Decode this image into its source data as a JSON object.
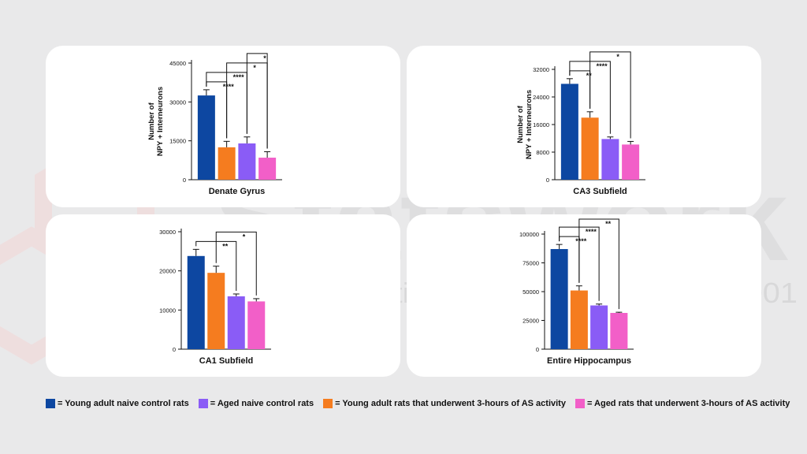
{
  "colors": {
    "young_naive": "#0d47a1",
    "aged_naive": "#8a5cf6",
    "young_as": "#f57c1f",
    "aged_as": "#f25fc8"
  },
  "watermark": {
    "brand": "Statswork",
    "tagline": "Pioneer Statistical Consulting since 2001"
  },
  "legend": [
    {
      "label": "= Young adult naive control rats",
      "color": "#0d47a1"
    },
    {
      "label": "= Aged naive control rats",
      "color": "#8a5cf6"
    },
    {
      "label": "= Young adult rats that underwent 3-hours of AS activity",
      "color": "#f57c1f"
    },
    {
      "label": "= Aged rats that underwent 3-hours of AS activity",
      "color": "#f25fc8"
    }
  ],
  "chart_data": [
    {
      "type": "bar",
      "title": "Denate Gyrus",
      "ylabel": [
        "Number of",
        "NPY + Interneurons"
      ],
      "ylim": [
        0,
        45000
      ],
      "yticks": [
        0,
        15000,
        30000,
        45000
      ],
      "categories": [
        "Young adult naive control rats",
        "Young adult rats that underwent 3-hours of AS activity",
        "Aged naive control rats",
        "Aged rats that underwent 3-hours of AS activity"
      ],
      "values": [
        32500,
        12500,
        14000,
        8500
      ],
      "errors": [
        2200,
        2300,
        2500,
        2300
      ],
      "colors": [
        "#0d47a1",
        "#f57c1f",
        "#8a5cf6",
        "#f25fc8"
      ],
      "significance": [
        {
          "from": 0,
          "to": 1,
          "label": "****"
        },
        {
          "from": 0,
          "to": 2,
          "label": "****"
        },
        {
          "from": 1,
          "to": 3,
          "label": "*"
        },
        {
          "from": 2,
          "to": 3,
          "label": "*"
        }
      ]
    },
    {
      "type": "bar",
      "title": "CA3 Subfield",
      "ylabel": [
        "Number of",
        "NPY + Interneurons"
      ],
      "ylim": [
        0,
        32000
      ],
      "yticks": [
        0,
        8000,
        16000,
        24000,
        32000
      ],
      "categories": [
        "Young adult naive control rats",
        "Young adult rats that underwent 3-hours of AS activity",
        "Aged naive control rats",
        "Aged rats that underwent 3-hours of AS activity"
      ],
      "values": [
        27800,
        18000,
        11800,
        10200
      ],
      "errors": [
        1500,
        1700,
        600,
        900
      ],
      "colors": [
        "#0d47a1",
        "#f57c1f",
        "#8a5cf6",
        "#f25fc8"
      ],
      "significance": [
        {
          "from": 0,
          "to": 1,
          "label": "**"
        },
        {
          "from": 0,
          "to": 2,
          "label": "****"
        },
        {
          "from": 1,
          "to": 3,
          "label": "*"
        }
      ]
    },
    {
      "type": "bar",
      "title": "CA1 Subfield",
      "ylim": [
        0,
        30000
      ],
      "yticks": [
        0,
        10000,
        20000,
        30000
      ],
      "categories": [
        "Young adult naive control rats",
        "Young adult rats that underwent 3-hours of AS activity",
        "Aged naive control rats",
        "Aged rats that underwent 3-hours of AS activity"
      ],
      "values": [
        23800,
        19500,
        13500,
        12200
      ],
      "errors": [
        1700,
        1700,
        600,
        700
      ],
      "colors": [
        "#0d47a1",
        "#f57c1f",
        "#8a5cf6",
        "#f25fc8"
      ],
      "significance": [
        {
          "from": 0,
          "to": 2,
          "label": "**"
        },
        {
          "from": 1,
          "to": 3,
          "label": "*"
        }
      ]
    },
    {
      "type": "bar",
      "title": "Entire Hippocampus",
      "ylim": [
        0,
        100000
      ],
      "yticks": [
        0,
        25000,
        50000,
        75000,
        100000
      ],
      "categories": [
        "Young adult naive control rats",
        "Young adult rats that underwent 3-hours of AS activity",
        "Aged naive control rats",
        "Aged rats that underwent 3-hours of AS activity"
      ],
      "values": [
        87000,
        51000,
        38000,
        31500
      ],
      "errors": [
        4000,
        4000,
        1200,
        600
      ],
      "colors": [
        "#0d47a1",
        "#f57c1f",
        "#8a5cf6",
        "#f25fc8"
      ],
      "significance": [
        {
          "from": 0,
          "to": 1,
          "label": "****"
        },
        {
          "from": 0,
          "to": 2,
          "label": "****"
        },
        {
          "from": 1,
          "to": 3,
          "label": "**"
        }
      ]
    }
  ]
}
